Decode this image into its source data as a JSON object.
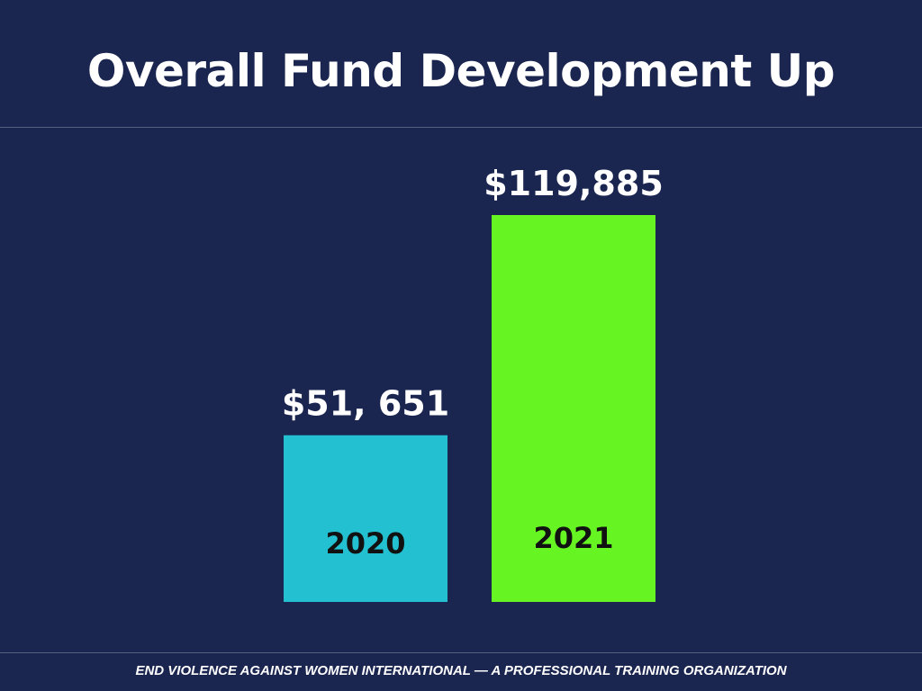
{
  "slide": {
    "title": "Overall Fund Development Up",
    "footer": "END VIOLENCE AGAINST WOMEN INTERNATIONAL — A PROFESSIONAL TRAINING ORGANIZATION"
  },
  "colors": {
    "background": "#1a2550",
    "bar_2020": "#22c0d0",
    "bar_2021": "#66f522",
    "text": "#ffffff"
  },
  "chart_data": {
    "type": "bar",
    "categories": [
      "2020",
      "2021"
    ],
    "values": [
      51651,
      119885
    ],
    "data_labels": [
      "$51, 651",
      "$119,885"
    ],
    "title": "",
    "xlabel": "",
    "ylabel": "",
    "ylim": [
      0,
      119885
    ],
    "grid": false,
    "legend": "none"
  }
}
